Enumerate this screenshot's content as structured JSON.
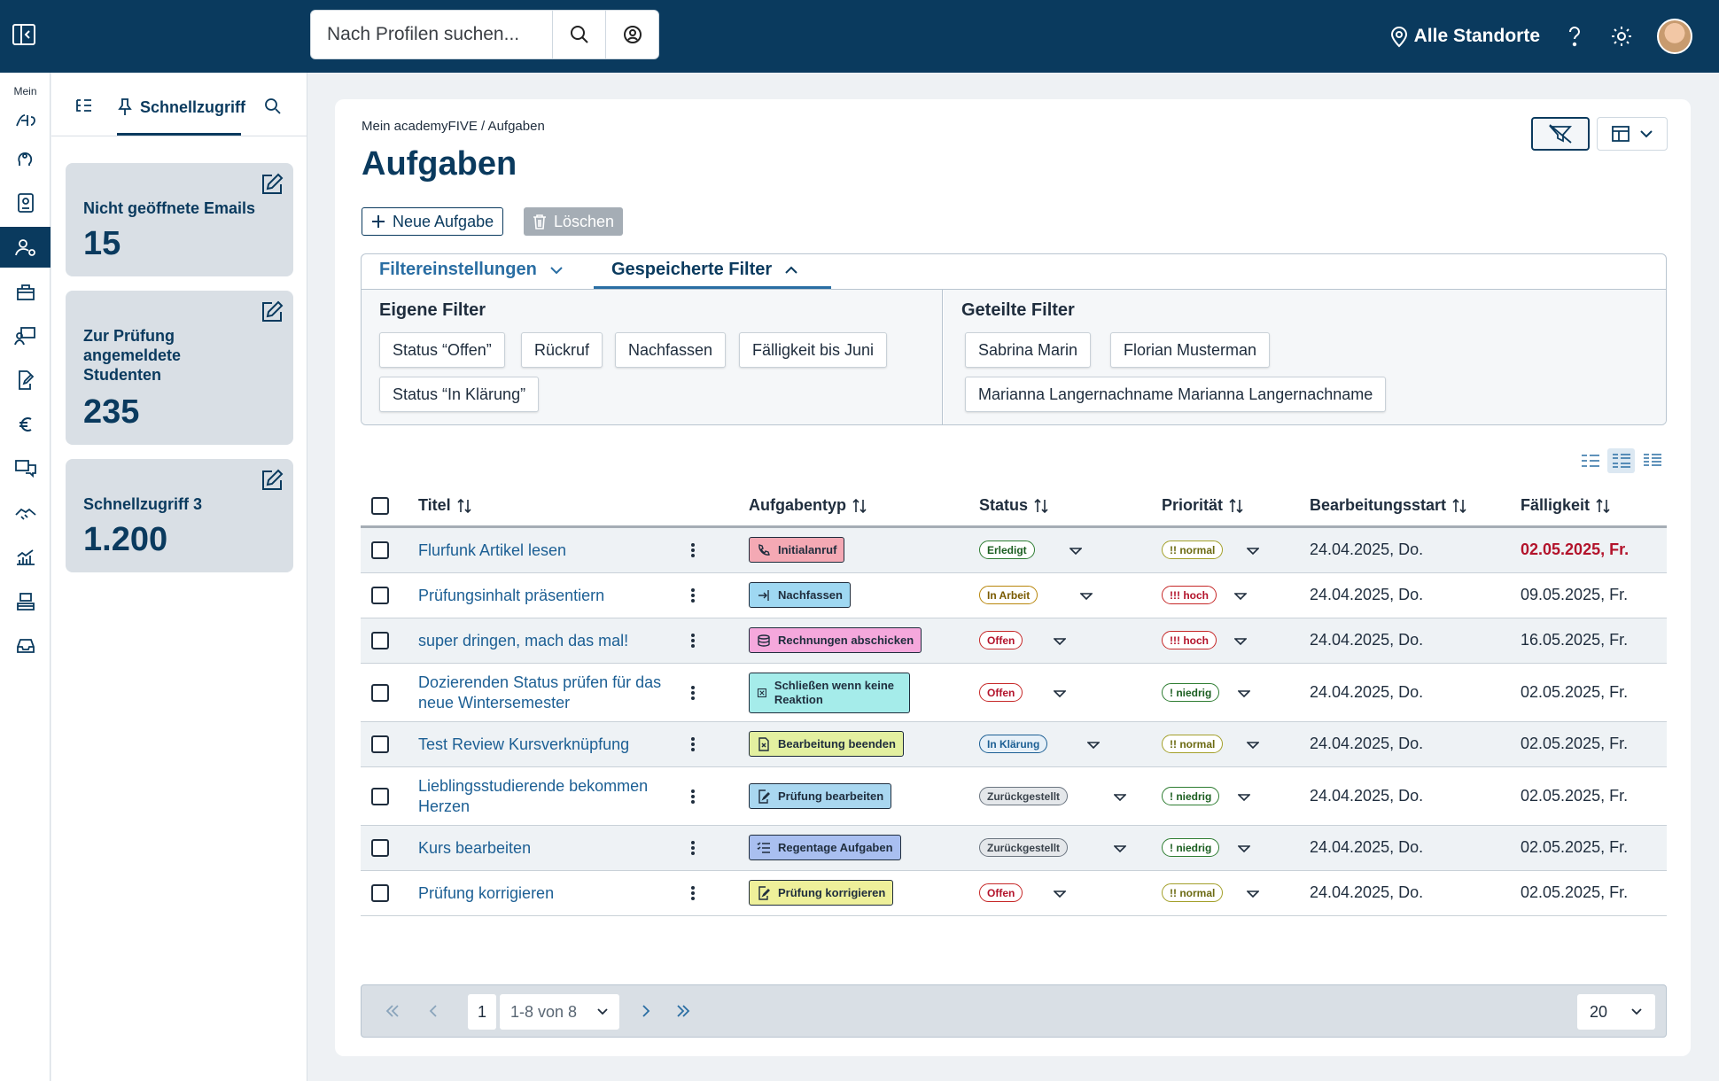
{
  "topbar": {
    "search_placeholder": "Nach Profilen suchen...",
    "location_label": "Alle Standorte"
  },
  "rail": {
    "mein_label": "Mein"
  },
  "panel": {
    "active_tab": "Schnellzugriff",
    "cards": [
      {
        "label": "Nicht geöffnete Emails",
        "value": "15"
      },
      {
        "label": "Zur Prüfung angemeldete Studenten",
        "value": "235"
      },
      {
        "label": "Schnellzugriff 3",
        "value": "1.200"
      }
    ]
  },
  "main": {
    "breadcrumb": "Mein academyFIVE  /  Aufgaben",
    "title": "Aufgaben",
    "new_button": "Neue Aufgabe",
    "delete_button": "Löschen"
  },
  "filters": {
    "tab_settings": "Filtereinstellungen",
    "tab_saved": "Gespeicherte Filter",
    "own_title": "Eigene Filter",
    "own": [
      "Status “Offen”",
      "Rückruf",
      "Nachfassen",
      "Fälligkeit bis Juni",
      "Status “In Klärung”"
    ],
    "shared_title": "Geteilte Filter",
    "shared": [
      "Sabrina Marin",
      "Florian Musterman",
      "Marianna Langernachname Marianna Langernachname"
    ]
  },
  "table": {
    "headers": [
      "Titel",
      "Aufgabentyp",
      "Status",
      "Priorität",
      "Bearbeitungsstart",
      "Fälligkeit"
    ],
    "rows": [
      {
        "title": "Flurfunk Artikel lesen",
        "type": "Initialanruf",
        "status": "Erledigt",
        "priority": "!! normal",
        "start": "24.04.2025, Do.",
        "due": "02.05.2025, Fr."
      },
      {
        "title": "Prüfungsinhalt präsentiern",
        "type": "Nachfassen",
        "status": "In Arbeit",
        "priority": "!!! hoch",
        "start": "24.04.2025, Do.",
        "due": "09.05.2025, Fr."
      },
      {
        "title": "super dringen, mach das mal!",
        "type": "Rechnungen abschicken",
        "status": "Offen",
        "priority": "!!! hoch",
        "start": "24.04.2025, Do.",
        "due": "16.05.2025, Fr."
      },
      {
        "title": "Dozierenden Status prüfen für das neue Wintersemester",
        "type": "Schließen wenn keine Reaktion",
        "status": "Offen",
        "priority": "! niedrig",
        "start": "24.04.2025, Do.",
        "due": "02.05.2025, Fr."
      },
      {
        "title": "Test Review Kursverknüpfung",
        "type": "Bearbeitung beenden",
        "status": "In Klärung",
        "priority": "!! normal",
        "start": "24.04.2025, Do.",
        "due": "02.05.2025, Fr."
      },
      {
        "title": "Lieblingsstudierende bekommen Herzen",
        "type": "Prüfung bearbeiten",
        "status": "Zurückgestellt",
        "priority": "! niedrig",
        "start": "24.04.2025, Do.",
        "due": "02.05.2025, Fr."
      },
      {
        "title": "Kurs bearbeiten",
        "type": "Regentage Aufgaben",
        "status": "Zurückgestellt",
        "priority": "! niedrig",
        "start": "24.04.2025, Do.",
        "due": "02.05.2025, Fr."
      },
      {
        "title": "Prüfung korrigieren",
        "type": "Prüfung korrigieren",
        "status": "Offen",
        "priority": "!! normal",
        "start": "24.04.2025, Do.",
        "due": "02.05.2025, Fr."
      }
    ]
  },
  "pagination": {
    "page": "1",
    "range": "1-8 von 8",
    "page_size": "20"
  },
  "colors": {
    "brand": "#0a3a5e",
    "overdue": "#b3132b",
    "type_initialanruf": "#f4a9b4",
    "type_nachfassen": "#9fd8f2",
    "type_rechnungen": "#f5a8dc",
    "type_schliessen": "#a5ecea",
    "type_bearbeitung": "#e3f0a0",
    "type_pruefung_bearbeiten": "#a9d7f0",
    "type_regentage": "#a9bff0",
    "type_pruefung_korrigieren": "#eef09a"
  }
}
